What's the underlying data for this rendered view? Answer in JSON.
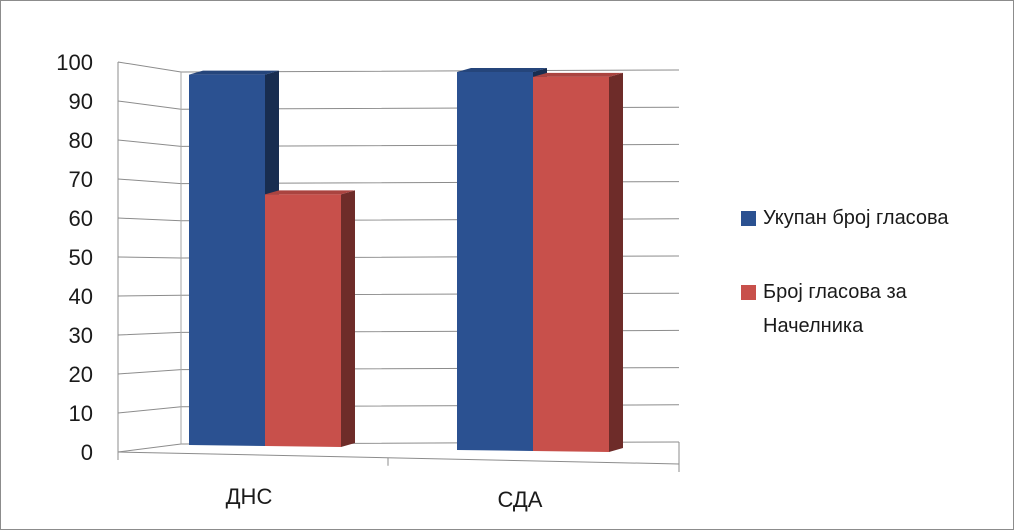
{
  "chart_data": {
    "type": "bar",
    "categories": [
      "ДНС",
      "СДА"
    ],
    "series": [
      {
        "name": "Укупан број гласова",
        "values": [
          98,
          100
        ],
        "color": "#2b5191"
      },
      {
        "name": "Број гласова за Начелника",
        "values": [
          67,
          99
        ],
        "color": "#c8504b"
      }
    ],
    "ylim": [
      0,
      100
    ],
    "y_ticks": [
      "0",
      "10",
      "20",
      "30",
      "40",
      "50",
      "60",
      "70",
      "80",
      "90",
      "100"
    ],
    "grid": true,
    "three_d": true,
    "legend_position": "right",
    "title": "",
    "xlabel": "",
    "ylabel": ""
  }
}
